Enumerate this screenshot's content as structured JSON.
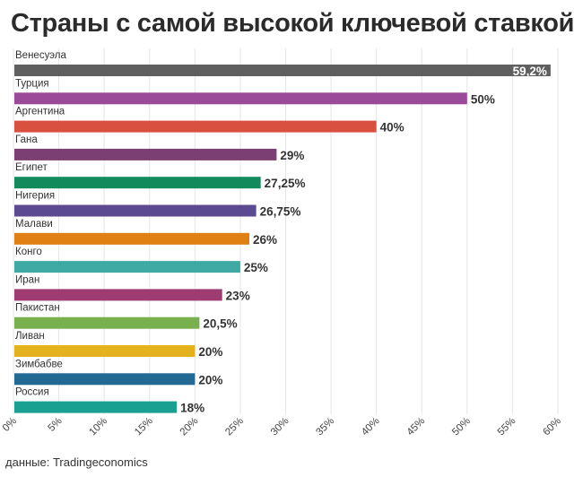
{
  "title": "Страны с самой высокой ключевой ставкой",
  "source": "данные: Tradingeconomics",
  "chart_data": {
    "type": "bar",
    "orientation": "horizontal",
    "categories": [
      "Венесуэла",
      "Турция",
      "Аргентина",
      "Гана",
      "Египет",
      "Нигерия",
      "Малави",
      "Конго",
      "Иран",
      "Пакистан",
      "Ливан",
      "Зимбабве",
      "Россия"
    ],
    "values": [
      59.2,
      50,
      40,
      29,
      27.25,
      26.75,
      26,
      25,
      23,
      20.5,
      20,
      20,
      18
    ],
    "value_labels": [
      "59,2%",
      "50%",
      "40%",
      "29%",
      "27,25%",
      "26,75%",
      "26%",
      "25%",
      "23%",
      "20,5%",
      "20%",
      "20%",
      "18%"
    ],
    "colors": [
      "#5f5f5f",
      "#9b4a9a",
      "#d9503f",
      "#7b3f73",
      "#128a5c",
      "#5b4a91",
      "#e07f12",
      "#3fa9a3",
      "#9e3b70",
      "#78b04d",
      "#e4b21c",
      "#226a94",
      "#1aa090"
    ],
    "xlim": [
      0,
      60
    ],
    "x_ticks": [
      "0%",
      "5%",
      "10%",
      "15%",
      "20%",
      "25%",
      "30%",
      "35%",
      "40%",
      "45%",
      "50%",
      "55%",
      "60%"
    ],
    "grid": true,
    "legend": "none"
  }
}
